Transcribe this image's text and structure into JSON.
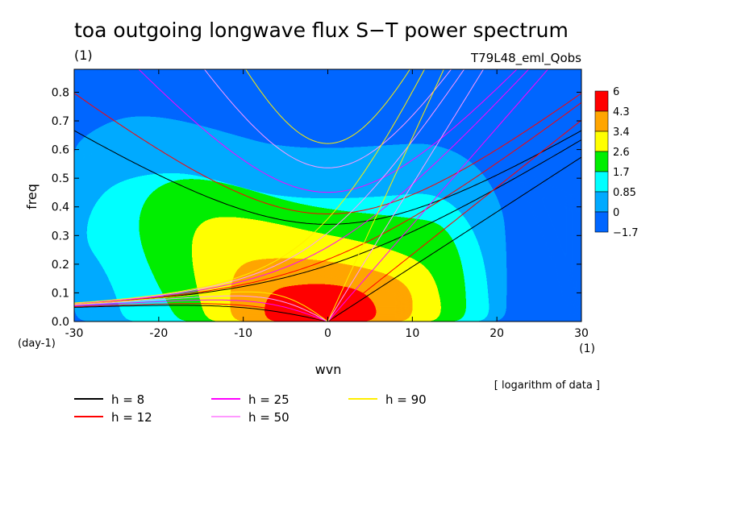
{
  "chart_data": {
    "type": "heatmap",
    "title": "toa outgoing longwave flux S−T power spectrum",
    "units_label": "(1)",
    "case_label": "T79L48_eml_Qobs",
    "xlabel": "wvn",
    "ylabel": "freq",
    "x_unit": "(1)",
    "y_unit": "(day-1)",
    "xlim": [
      -30,
      30
    ],
    "ylim": [
      0,
      0.88
    ],
    "x_ticks": [
      "-30",
      "-20",
      "-10",
      "0",
      "10",
      "20",
      "30"
    ],
    "y_ticks": [
      "0.0",
      "0.1",
      "0.2",
      "0.3",
      "0.4",
      "0.5",
      "0.6",
      "0.7",
      "0.8"
    ],
    "note": "[ logarithm of data ]",
    "colorbar": {
      "labels": [
        "6",
        "4.3",
        "3.4",
        "2.6",
        "1.7",
        "0.85",
        "0",
        "−1.7"
      ],
      "colors": [
        "#ff0000",
        "#ffa500",
        "#ffff00",
        "#00ee00",
        "#00ffff",
        "#00aaff",
        "#0066ff"
      ]
    },
    "contour_levels": [
      -1.7,
      0,
      0.85,
      1.7,
      2.6,
      3.4,
      4.3,
      6
    ],
    "contour_regions": [
      {
        "level": 0.85,
        "color": "#00ffff",
        "center": [
          0,
          0.05
        ],
        "x_range": [
          -30,
          21
        ],
        "freq_top": 0.62
      },
      {
        "level": 1.7,
        "color": "#00ee00",
        "center": [
          -3,
          0.15
        ],
        "x_range": [
          -22,
          16
        ],
        "freq_top": 0.51
      },
      {
        "level": 2.6,
        "color": "#ffff00",
        "center": [
          -1,
          0.1
        ],
        "x_range": [
          -16,
          14
        ],
        "freq_top": 0.37
      },
      {
        "level": 3.4,
        "color": "#ffa500",
        "center": [
          -1,
          0.06
        ],
        "x_range": [
          -12,
          10
        ],
        "freq_top": 0.22
      },
      {
        "level": 4.3,
        "color": "#ff0000",
        "center": [
          -1,
          0.04
        ],
        "x_range": [
          -7,
          6
        ],
        "freq_top": 0.13
      }
    ],
    "series": [
      {
        "name": "h =  8",
        "color": "#000000",
        "equiv_depth_m": 8
      },
      {
        "name": "h = 12",
        "color": "#ff0000",
        "equiv_depth_m": 12
      },
      {
        "name": "h = 25",
        "color": "#ff00ff",
        "equiv_depth_m": 25
      },
      {
        "name": "h = 50",
        "color": "#ff99ff",
        "equiv_depth_m": 50
      },
      {
        "name": "h = 90",
        "color": "#ffee00",
        "equiv_depth_m": 90
      }
    ],
    "grid": false,
    "legend_position": "bottom-left"
  }
}
